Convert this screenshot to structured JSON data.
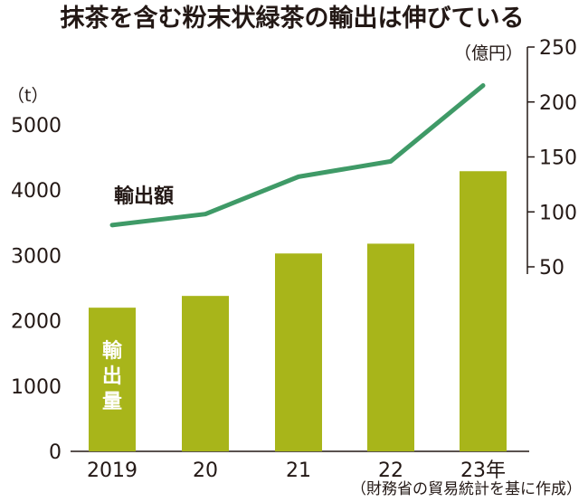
{
  "chart_data": {
    "type": "bar+line",
    "title": "抹茶を含む粉末状緑茶の輸出は伸びている",
    "categories": [
      "2019",
      "20",
      "21",
      "22",
      "23年"
    ],
    "series": [
      {
        "name": "輸出量",
        "type": "bar",
        "axis": "left",
        "color": "#a8b51a",
        "values": [
          2200,
          2380,
          3030,
          3180,
          4290
        ]
      },
      {
        "name": "輸出額",
        "type": "line",
        "axis": "right",
        "color": "#3f9a67",
        "values": [
          88,
          98,
          132,
          146,
          215
        ]
      }
    ],
    "left_axis": {
      "unit": "（t）",
      "ylim": [
        0,
        5000
      ],
      "ticks": [
        0,
        1000,
        2000,
        3000,
        4000,
        5000
      ]
    },
    "right_axis": {
      "unit": "（億円）",
      "ylim": [
        50,
        250
      ],
      "ticks": [
        50,
        100,
        150,
        200,
        250
      ]
    },
    "source": "（財務省の貿易統計を基に作成）",
    "grid": false
  }
}
